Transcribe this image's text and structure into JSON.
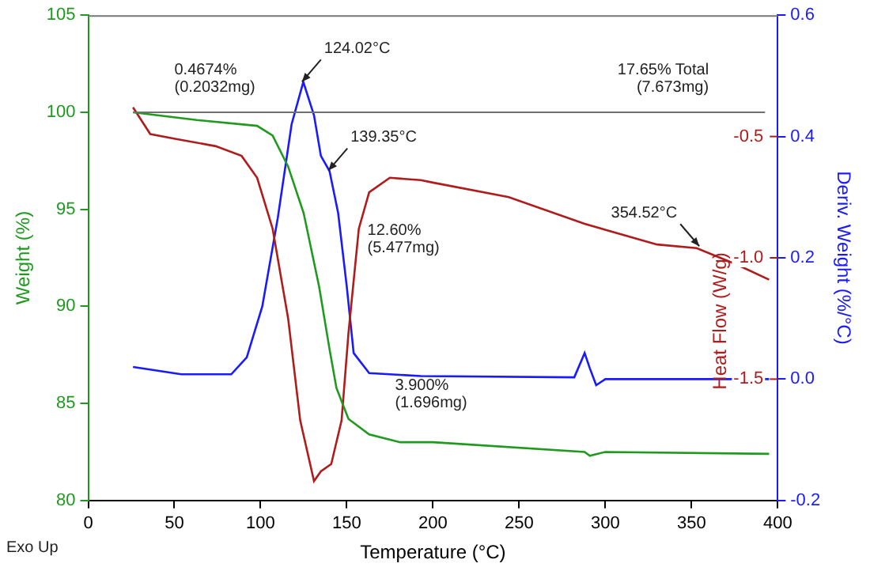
{
  "chart_data": {
    "type": "line",
    "xlabel": "Temperature (°C)",
    "ylabel": "Weight (%)",
    "y2label": "Heat Flow (W/g)",
    "y3label": "Deriv. Weight (%/°C)",
    "xlim": [
      0,
      400
    ],
    "xticks": [
      0,
      50,
      100,
      150,
      200,
      250,
      300,
      350,
      400
    ],
    "ylim": [
      80,
      105
    ],
    "yticks": [
      80,
      85,
      90,
      95,
      100,
      105
    ],
    "y2lim": [
      -2.0,
      0.0
    ],
    "y2ticks": [
      {
        "value": -1.5,
        "label": "-1.5"
      },
      {
        "value": -1.0,
        "label": "-1.0"
      },
      {
        "value": -0.5,
        "label": "-0.5"
      }
    ],
    "y3lim": [
      -0.2,
      0.6
    ],
    "y3ticks": [
      {
        "value": -0.2,
        "label": "-0.2"
      },
      {
        "value": 0.0,
        "label": "0.0"
      },
      {
        "value": 0.2,
        "label": "0.2"
      },
      {
        "value": 0.4,
        "label": "0.4"
      },
      {
        "value": 0.6,
        "label": "0.6"
      }
    ],
    "series": [
      {
        "color": "#1f9a1f",
        "x": [
          26,
          63,
          98,
          107,
          116,
          125,
          134,
          140,
          144,
          151,
          163,
          181,
          200,
          288,
          291,
          300,
          395
        ],
        "values": [
          100.0,
          99.6,
          99.3,
          98.8,
          97.2,
          94.8,
          91.0,
          87.8,
          85.8,
          84.2,
          83.4,
          83.0,
          83.0,
          82.5,
          82.3,
          82.5,
          82.4
        ]
      },
      {
        "color": "#b01c1c",
        "axis": "y2",
        "x": [
          26,
          36,
          51,
          74,
          89,
          98,
          107,
          116,
          123,
          131,
          135,
          141,
          147,
          151,
          157,
          163,
          175,
          193,
          200,
          244,
          288,
          330,
          353,
          377,
          395
        ],
        "values": [
          -0.38,
          -0.49,
          -0.51,
          -0.54,
          -0.58,
          -0.67,
          -0.88,
          -1.25,
          -1.67,
          -1.92,
          -1.88,
          -1.85,
          -1.67,
          -1.31,
          -0.88,
          -0.73,
          -0.67,
          -0.68,
          -0.69,
          -0.75,
          -0.86,
          -0.945,
          -0.96,
          -1.03,
          -1.09
        ]
      },
      {
        "color": "#1a1aff",
        "axis": "y3",
        "x": [
          26,
          54,
          83,
          92,
          101,
          110,
          118,
          124.8,
          131,
          135,
          140,
          145,
          150,
          154,
          163,
          193,
          282,
          288,
          291,
          294.7,
          300,
          395
        ],
        "values": [
          0.02,
          0.008,
          0.008,
          0.036,
          0.12,
          0.266,
          0.42,
          0.49,
          0.435,
          0.368,
          0.343,
          0.274,
          0.153,
          0.043,
          0.01,
          0.005,
          0.003,
          0.043,
          0.018,
          -0.01,
          0.0,
          0.0
        ]
      }
    ],
    "ref_lines": [
      {
        "axis": "y",
        "value": 100,
        "color": "#707070"
      }
    ],
    "annotations": [
      {
        "text": "124.02°C",
        "x": 124.02,
        "y": 101.57
      },
      {
        "text": "139.35°C",
        "x": 139.35,
        "y": 97.0
      },
      {
        "text": "354.52°C",
        "x": 354.52,
        "y": 93.1
      },
      "0.4674%\n(0.2032mg)",
      "12.60%\n(5.477mg)",
      "3.900%\n(1.696mg)",
      "17.65% Total\n(7.673mg)",
      "Exo Up"
    ]
  }
}
